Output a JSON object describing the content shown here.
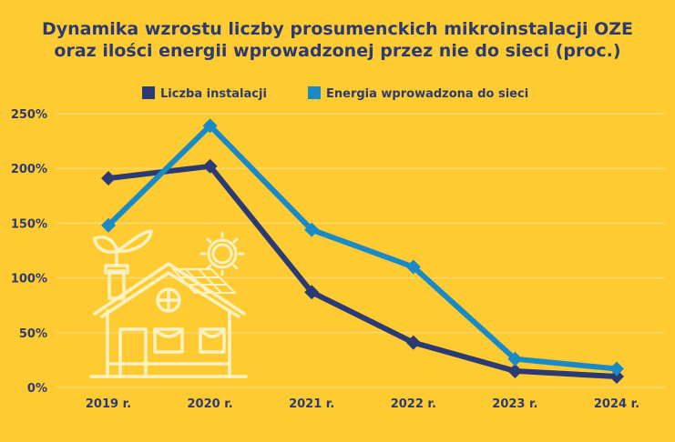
{
  "chart_data": {
    "type": "line",
    "title_lines": [
      "Dynamika wzrostu liczby prosumenckich mikroinstalacji OZE",
      "oraz ilości energii wprowadzonej przez nie do sieci (proc.)"
    ],
    "categories": [
      "2019 r.",
      "2020 r.",
      "2021 r.",
      "2022 r.",
      "2023 r.",
      "2024 r."
    ],
    "y_ticks": [
      "0%",
      "50%",
      "100%",
      "150%",
      "200%",
      "250%"
    ],
    "ylim": [
      0,
      250
    ],
    "grid": true,
    "legend_position": "top",
    "series": [
      {
        "name": "Liczba instalacji",
        "color": "#2B3A72",
        "values": [
          191,
          202,
          87,
          41,
          15,
          10
        ]
      },
      {
        "name": "Energia wprowadzona do sieci",
        "color": "#1A8AC6",
        "values": [
          148,
          239,
          144,
          110,
          26,
          17
        ]
      }
    ]
  },
  "colors": {
    "background": "#FFCB33",
    "grid": "#F2DE8F",
    "text": "#2D3A6E",
    "illustration": "#FFF2C2"
  },
  "icons": [
    "house-icon",
    "sun-icon",
    "sprout-icon",
    "solar-panel-icon"
  ]
}
